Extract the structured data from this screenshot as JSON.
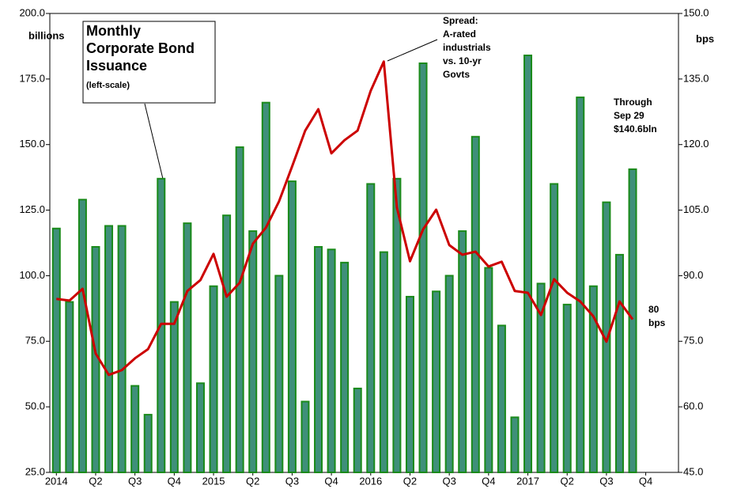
{
  "chart_data": {
    "type": "bar_line",
    "ylabel": "billions",
    "y2label": "bps",
    "categories": [
      "2014",
      null,
      null,
      "Q2",
      null,
      null,
      "Q3",
      null,
      null,
      "Q4",
      null,
      null,
      "2015",
      null,
      null,
      "Q2",
      null,
      null,
      "Q3",
      null,
      null,
      "Q4",
      null,
      null,
      "2016",
      null,
      null,
      "Q2",
      null,
      null,
      "Q3",
      null,
      null,
      "Q4",
      null,
      null,
      "2017",
      null,
      null,
      "Q2",
      null,
      null,
      "Q3",
      null,
      null,
      "Q4",
      null,
      null
    ],
    "series": [
      {
        "name": "Monthly Corporate Bond Issuance",
        "color": "#1a8a1a",
        "axis": "y",
        "values": [
          118,
          90,
          129,
          111,
          119,
          119,
          58,
          47,
          137,
          90,
          120,
          59,
          96,
          123,
          149,
          117,
          166,
          100,
          136,
          52,
          111,
          110,
          105,
          57,
          135,
          109,
          137,
          92,
          181,
          94,
          100,
          117,
          153,
          103,
          81,
          46,
          184,
          97,
          135,
          89,
          168,
          96,
          128,
          108,
          140.6,
          null,
          null,
          null
        ]
      },
      {
        "name": "Spread",
        "color": "#cc0000",
        "axis": "y2",
        "values": [
          84.7,
          84.3,
          87,
          72.2,
          67.3,
          68.4,
          71.1,
          73.2,
          79,
          79,
          86.5,
          89,
          95,
          85.2,
          88.4,
          97.3,
          101,
          107,
          115,
          123.2,
          128.1,
          118,
          121,
          123.2,
          132.3,
          139,
          105.6,
          93.3,
          100.6,
          105.1,
          97,
          94.8,
          95.5,
          92.1,
          93.2,
          86.5,
          86.1,
          81,
          89.2,
          86.1,
          84.1,
          80.7,
          74.9,
          84.1,
          80,
          null,
          null,
          null
        ]
      }
    ],
    "ylim": [
      25,
      200
    ],
    "yticks": [
      {
        "value": 25,
        "label": "25.0"
      },
      {
        "value": 50,
        "label": "50.0"
      },
      {
        "value": 75,
        "label": "75.0"
      },
      {
        "value": 100,
        "label": "100.0"
      },
      {
        "value": 125,
        "label": "125.0"
      },
      {
        "value": 150,
        "label": "150.0"
      },
      {
        "value": 175,
        "label": "175.0"
      },
      {
        "value": 200,
        "label": "200.0"
      }
    ],
    "y2lim": [
      45,
      150
    ],
    "y2ticks": [
      {
        "value": 45,
        "label": "45.0"
      },
      {
        "value": 60,
        "label": "60.0"
      },
      {
        "value": 75,
        "label": "75.0"
      },
      {
        "value": 90,
        "label": "90.0"
      },
      {
        "value": 105,
        "label": "105.0"
      },
      {
        "value": 120,
        "label": "120.0"
      },
      {
        "value": 135,
        "label": "135.0"
      },
      {
        "value": 150,
        "label": "150.0"
      }
    ],
    "grid": false,
    "annotations": [
      {
        "lines": [
          "Monthly",
          "Corporate Bond",
          "Issuance"
        ]
      },
      {
        "lines": [
          "(left-scale)"
        ]
      },
      {
        "lines": [
          "Spread:",
          "A-rated",
          "industrials",
          "vs. 10-yr",
          "Govts"
        ]
      },
      {
        "lines": [
          "Through",
          "Sep 29",
          "$140.6bln"
        ]
      },
      {
        "lines": [
          "80",
          "bps"
        ]
      }
    ]
  }
}
